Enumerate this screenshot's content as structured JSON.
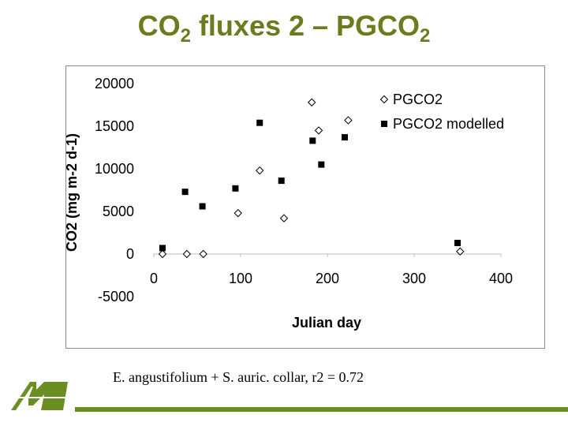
{
  "slide": {
    "title_main": "CO",
    "title_sub1": "2",
    "title_mid": " fluxes 2 – PGCO",
    "title_sub2": "2",
    "caption": "E. angustifolium + S. auric. collar, r2 = 0.72"
  },
  "colors": {
    "title": "#6b7c1e",
    "accent_green": "#6b8e23",
    "series_marker": "#000000"
  },
  "chart_data": {
    "type": "scatter",
    "xlabel": "Julian day",
    "ylabel": "CO2 (mg m-2 d-1)",
    "xlim": [
      0,
      400
    ],
    "ylim": [
      -5000,
      20000
    ],
    "xticks": [
      0,
      100,
      200,
      300,
      400
    ],
    "yticks": [
      -5000,
      0,
      5000,
      10000,
      15000,
      20000
    ],
    "grid": false,
    "legend_position": "top-right",
    "series": [
      {
        "name": "PGCO2",
        "marker": "diamond-open",
        "points": [
          [
            10,
            0
          ],
          [
            38,
            0
          ],
          [
            57,
            0
          ],
          [
            97,
            4800
          ],
          [
            122,
            9800
          ],
          [
            150,
            4200
          ],
          [
            182,
            17800
          ],
          [
            190,
            14500
          ],
          [
            224,
            15700
          ],
          [
            353,
            300
          ]
        ]
      },
      {
        "name": "PGCO2 modelled",
        "marker": "square-filled",
        "points": [
          [
            10,
            700
          ],
          [
            36,
            7300
          ],
          [
            56,
            5600
          ],
          [
            94,
            7700
          ],
          [
            122,
            15400
          ],
          [
            147,
            8600
          ],
          [
            183,
            13300
          ],
          [
            193,
            10500
          ],
          [
            220,
            13700
          ],
          [
            350,
            1300
          ]
        ]
      }
    ]
  }
}
